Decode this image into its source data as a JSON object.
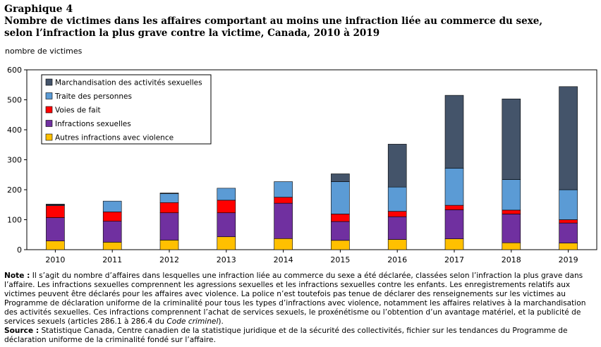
{
  "header": {
    "graph_number": "Graphique 4",
    "title_line1": "Nombre de victimes dans les affaires comportant au moins une infraction liée au commerce du sexe,",
    "title_line2": "selon l’infraction la plus grave contre la victime, Canada, 2010 à 2019"
  },
  "chart_data": {
    "type": "bar",
    "stacked": true,
    "ylabel": "nombre de victimes",
    "ylim": [
      0,
      600
    ],
    "yticks": [
      0,
      100,
      200,
      300,
      400,
      500,
      600
    ],
    "grid": false,
    "legend_position": "top-left, inside plot area",
    "categories": [
      "2010",
      "2011",
      "2012",
      "2013",
      "2014",
      "2015",
      "2016",
      "2017",
      "2018",
      "2019"
    ],
    "series": [
      {
        "name": "Autres infractions avec violence",
        "color": "#ffc000",
        "values": [
          29,
          25,
          32,
          43,
          37,
          31,
          34,
          36,
          23,
          22
        ]
      },
      {
        "name": "Infractions sexuelles",
        "color": "#7030a0",
        "values": [
          78,
          70,
          91,
          80,
          118,
          63,
          76,
          97,
          96,
          67
        ]
      },
      {
        "name": "Voies de fait",
        "color": "#ff0000",
        "values": [
          40,
          31,
          34,
          42,
          20,
          25,
          18,
          15,
          13,
          11
        ]
      },
      {
        "name": "Traite des personnes",
        "color": "#5b9bd5",
        "values": [
          2,
          36,
          30,
          40,
          52,
          108,
          81,
          124,
          102,
          100
        ]
      },
      {
        "name": "Marchandisation des activités sexuelles",
        "color": "#44546a",
        "values": [
          3,
          0,
          2,
          0,
          0,
          26,
          143,
          243,
          269,
          344
        ]
      }
    ]
  },
  "notes": {
    "note_label": "Note :",
    "note_text_before_italic": "Il s’agit du nombre d’affaires dans lesquelles une infraction liée au commerce du sexe a été déclarée, classées selon l’infraction la plus grave dans l’affaire. Les infractions sexuelles comprennent les agressions sexuelles et les infractions sexuelles contre les enfants. Les enregistrements relatifs aux victimes peuvent être déclarés pour les affaires avec violence. La police n’est toutefois pas tenue de déclarer des renseignements sur les victimes au Programme de déclaration uniforme de la criminalité pour tous les types d’infractions avec violence, notamment les affaires relatives à la marchandisation des activités sexuelles. Ces infractions comprennent l’achat de services sexuels, le proxénétisme ou l’obtention d’un avantage matériel, et la publicité de services sexuels (articles 286.1 à 286.4 du",
    "note_italic": "Code criminel",
    "note_text_after_italic": ").",
    "source_label": "Source :",
    "source_text": "Statistique Canada, Centre canadien de la statistique juridique et de la sécurité des collectivités, fichier sur les tendances du Programme de déclaration uniforme de la criminalité fondé sur l’affaire."
  }
}
